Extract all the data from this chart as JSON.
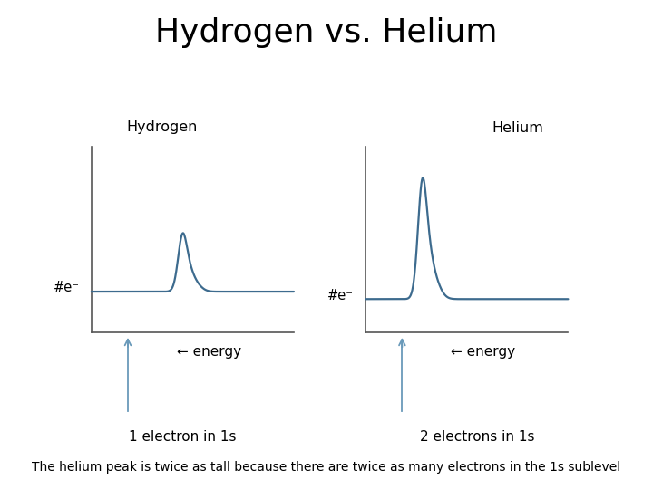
{
  "title": "Hydrogen vs. Helium",
  "title_fontsize": 26,
  "background_color": "#ffffff",
  "line_color": "#3d6b8e",
  "axis_color": "#555555",
  "text_color": "#000000",
  "hydrogen_label": "Hydrogen",
  "helium_label": "Helium",
  "he_label": "#e⁻",
  "energy_label": "← energy",
  "h_caption": "1 electron in 1s",
  "he_caption": "2 electrons in 1s",
  "bottom_text": "The helium peak is twice as tall because there are twice as many electrons in the 1s sublevel",
  "arrow_color": "#6a9aba"
}
